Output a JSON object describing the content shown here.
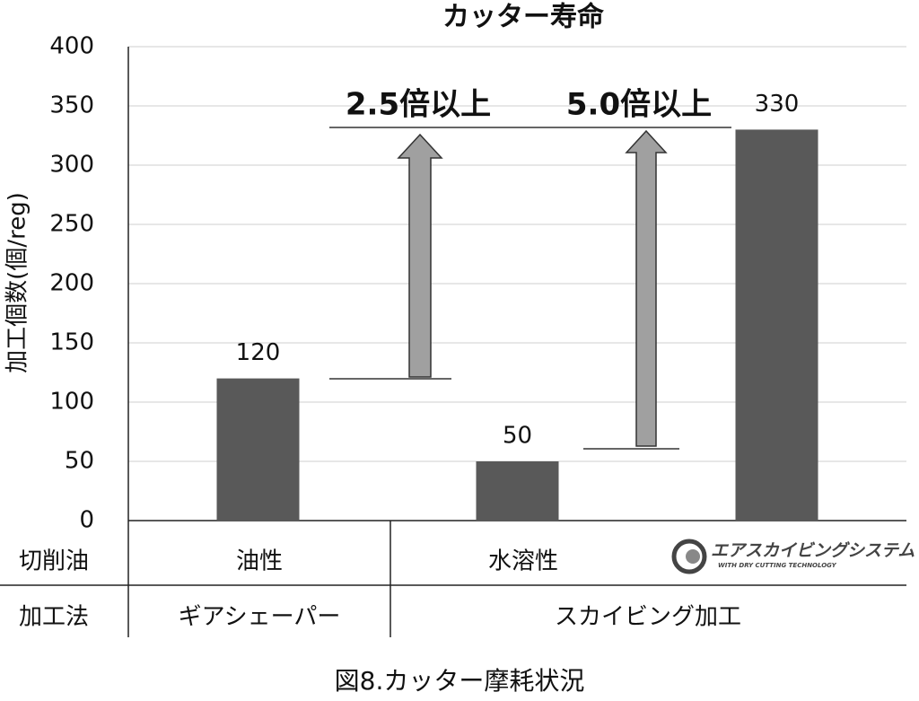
{
  "chart_data": {
    "type": "bar",
    "title": "カッター寿命",
    "y_label": "加工個数(個/reg)",
    "values": [
      120,
      50,
      330
    ],
    "color": "#595959",
    "ylim": [
      0,
      400
    ],
    "yticks": [
      0,
      50,
      100,
      150,
      200,
      250,
      300,
      350,
      400
    ],
    "grid": true,
    "annotations": [
      "2.5倍以上",
      "5.0倍以上"
    ]
  },
  "table": {
    "rows": [
      {
        "header": "切削油",
        "cells": [
          "油性",
          "水溶性"
        ]
      },
      {
        "header": "加工法",
        "cells": [
          "ギアシェーパー",
          "スカイビング加工"
        ]
      }
    ]
  },
  "logo": {
    "name": "エアスカイビングシステム",
    "tagline": "WITH DRY CUTTING TECHNOLOGY"
  },
  "caption": "図8.カッター摩耗状況"
}
